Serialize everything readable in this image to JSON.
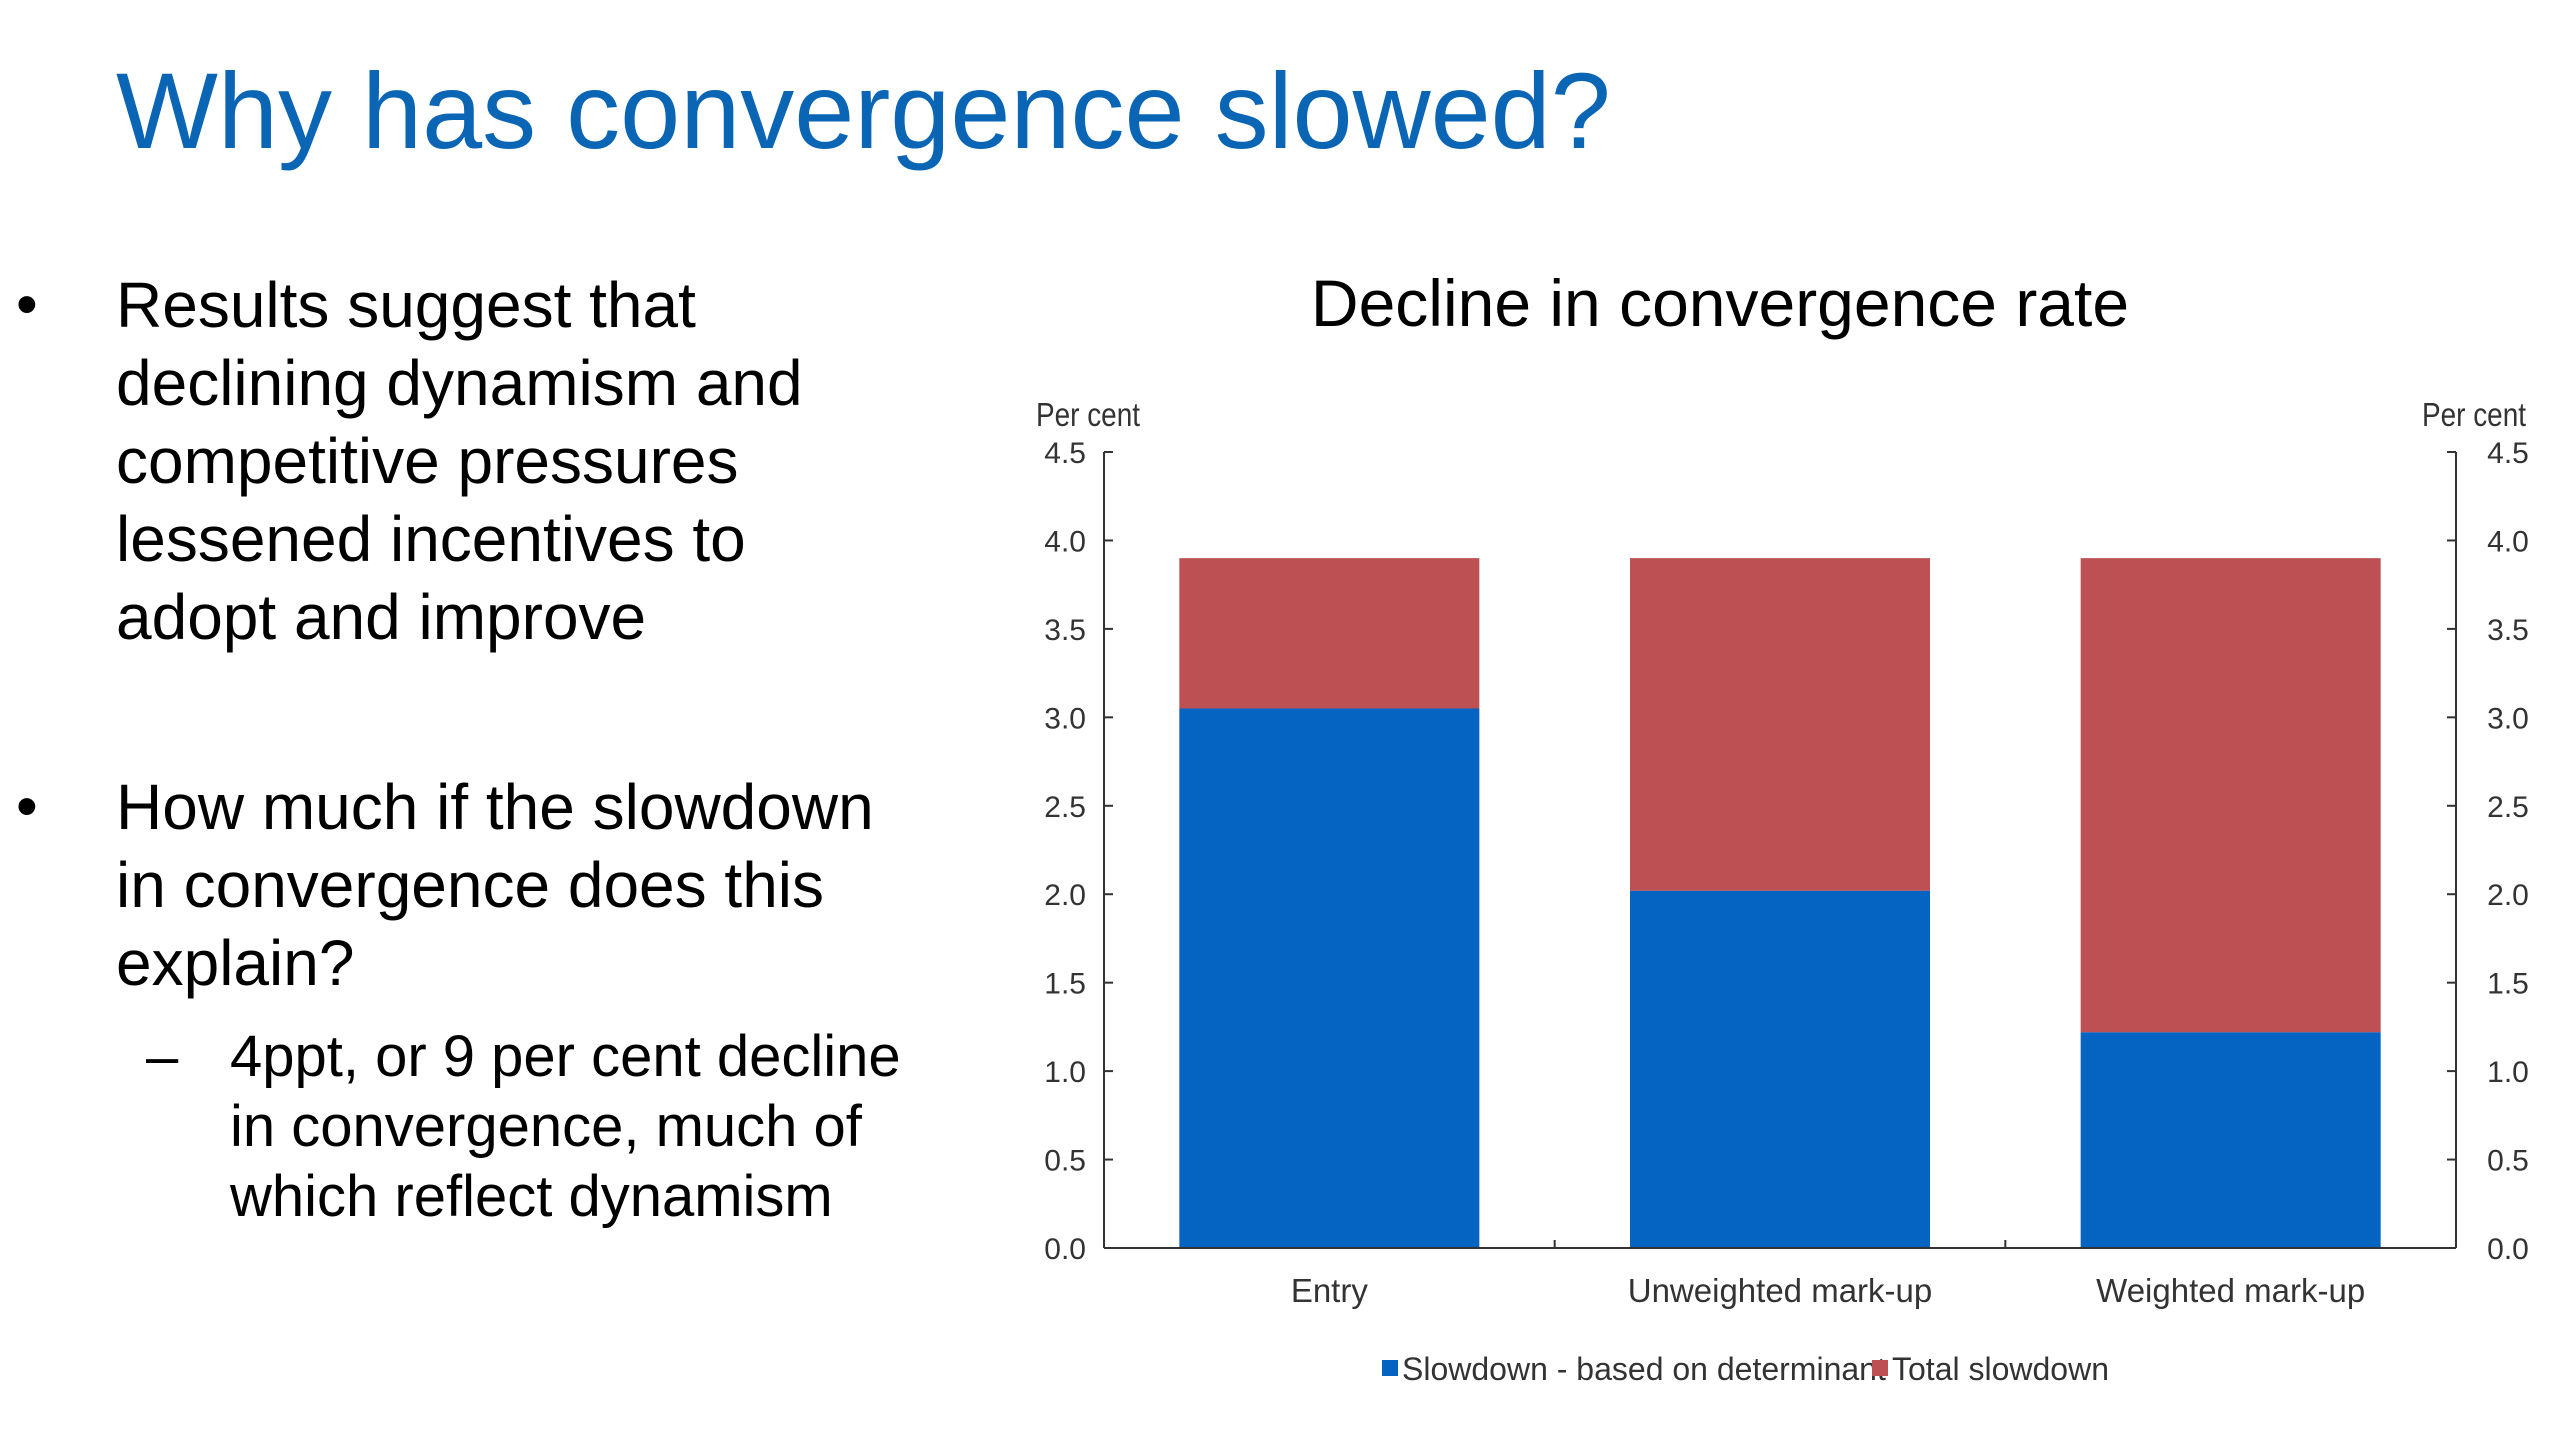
{
  "slide": {
    "title": "Why has convergence slowed?",
    "bullets": [
      {
        "marker": "•",
        "text": "Results suggest that\ndeclining dynamism and\ncompetitive pressures\nlessened incentives to\nadopt and improve"
      },
      {
        "marker": "•",
        "text": "How much if the slowdown\nin convergence does this\nexplain?"
      }
    ],
    "sub_bullets": [
      {
        "marker": "–",
        "text": "4ppt, or 9 per cent decline\nin convergence, much of\nwhich reflect dynamism"
      }
    ],
    "title_color": "#0A65B5"
  },
  "chart_data": {
    "type": "bar",
    "stacked": true,
    "title": "Decline in convergence rate",
    "ylabel_left": "Per cent",
    "ylabel_right": "Per cent",
    "categories": [
      "Entry",
      "Unweighted mark-up",
      "Weighted mark-up"
    ],
    "series": [
      {
        "name": "Slowdown - based on determinant",
        "values": [
          3.05,
          2.02,
          1.22
        ],
        "color": "#0563C1"
      },
      {
        "name": "Total slowdown",
        "values": [
          0.85,
          1.88,
          2.68
        ],
        "color": "#BC5052"
      }
    ],
    "ylim": [
      0,
      4.5
    ],
    "yticks": [
      "0.0",
      "0.5",
      "1.0",
      "1.5",
      "2.0",
      "2.5",
      "3.0",
      "3.5",
      "4.0",
      "4.5"
    ],
    "grid": false,
    "legend_position": "bottom"
  }
}
